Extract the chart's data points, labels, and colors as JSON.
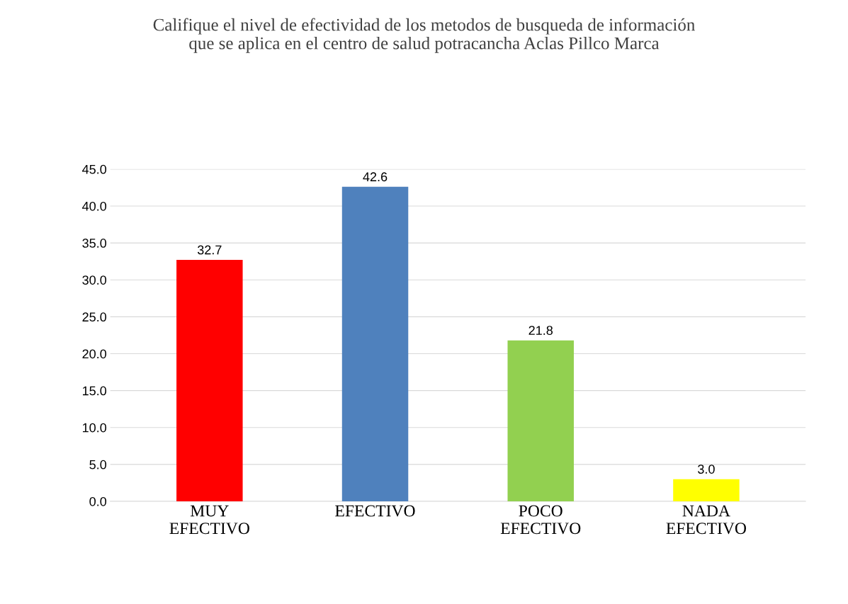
{
  "chart_data": {
    "type": "bar",
    "title": "Califique el nivel de efectividad de los metodos de busqueda de información\nque se aplica en el centro de salud potracancha Aclas Pillco Marca",
    "categories": [
      "MUY\nEFECTIVO",
      "EFECTIVO",
      "POCO\nEFECTIVO",
      "NADA\nEFECTIVO"
    ],
    "values": [
      32.7,
      42.6,
      21.8,
      3.0
    ],
    "colors": [
      "#ff0000",
      "#4f81bd",
      "#92d050",
      "#ffff00"
    ],
    "ylim": [
      0,
      45
    ],
    "value_labels": [
      "32.7",
      "42.6",
      "21.8",
      "3.0"
    ],
    "yticks": [
      {
        "value": 0,
        "label": "0.0"
      },
      {
        "value": 5,
        "label": "5.0"
      },
      {
        "value": 10,
        "label": "10.0"
      },
      {
        "value": 15,
        "label": "15.0"
      },
      {
        "value": 20,
        "label": "20.0"
      },
      {
        "value": 25,
        "label": "25.0"
      },
      {
        "value": 30,
        "label": "30.0"
      },
      {
        "value": 35,
        "label": "35.0"
      },
      {
        "value": 40,
        "label": "40.0"
      },
      {
        "value": 45,
        "label": "45.0"
      }
    ],
    "grid": "y",
    "legend": false
  }
}
